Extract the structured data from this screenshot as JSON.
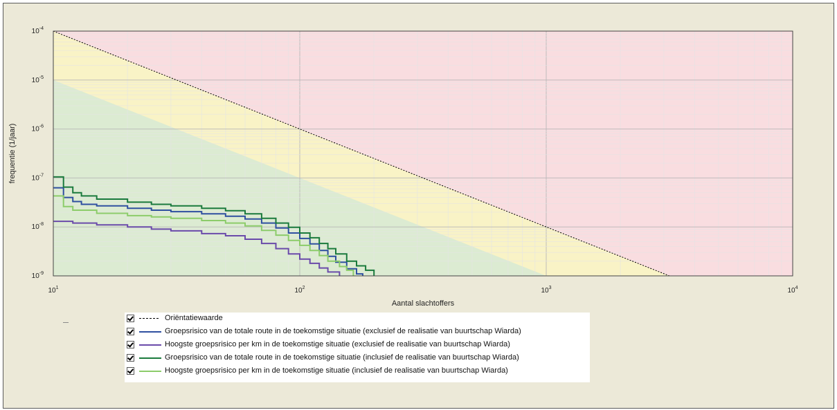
{
  "chart_data": {
    "type": "line",
    "xlabel": "Aantal slachtoffers",
    "ylabel": "frequentie (1/jaar)",
    "x_scale": "log",
    "y_scale": "log",
    "xlim": [
      10,
      10000
    ],
    "ylim": [
      1e-09,
      0.0001
    ],
    "x_ticks": [
      {
        "value": 10,
        "base": "10",
        "exp": "1"
      },
      {
        "value": 100,
        "base": "10",
        "exp": "2"
      },
      {
        "value": 1000,
        "base": "10",
        "exp": "3"
      },
      {
        "value": 10000,
        "base": "10",
        "exp": "4"
      }
    ],
    "y_ticks": [
      {
        "value": 0.0001,
        "base": "10",
        "exp": "-4"
      },
      {
        "value": 1e-05,
        "base": "10",
        "exp": "-5"
      },
      {
        "value": 1e-06,
        "base": "10",
        "exp": "-6"
      },
      {
        "value": 1e-07,
        "base": "10",
        "exp": "-7"
      },
      {
        "value": 1e-08,
        "base": "10",
        "exp": "-8"
      },
      {
        "value": 1e-09,
        "base": "10",
        "exp": "-9"
      }
    ],
    "grid": true,
    "regions": [
      {
        "zone": "above-orientation-value",
        "color": "#f9dde0"
      },
      {
        "zone": "between",
        "color": "#f9f3c6"
      },
      {
        "zone": "below-0.1x-orientation-value",
        "color": "#dcebd2"
      }
    ],
    "orientation_line": {
      "points": [
        [
          10,
          0.0001
        ],
        [
          3162,
          1e-09
        ]
      ],
      "color": "#000000",
      "style": "dashed"
    },
    "series": [
      {
        "name": "Groepsrisico van de totale route in de toekomstige situatie (exclusief de realisatie van buurtschap Wiarda)",
        "color": "#2e4fa0",
        "points": [
          [
            10,
            6.3e-08
          ],
          [
            11,
            4e-08
          ],
          [
            12,
            3.3e-08
          ],
          [
            13,
            2.9e-08
          ],
          [
            15,
            2.7e-08
          ],
          [
            20,
            2.4e-08
          ],
          [
            25,
            2.2e-08
          ],
          [
            30,
            2.05e-08
          ],
          [
            40,
            1.85e-08
          ],
          [
            50,
            1.65e-08
          ],
          [
            60,
            1.45e-08
          ],
          [
            70,
            1.2e-08
          ],
          [
            80,
            9.5e-09
          ],
          [
            90,
            7.5e-09
          ],
          [
            100,
            5.8e-09
          ],
          [
            110,
            4.5e-09
          ],
          [
            120,
            3.3e-09
          ],
          [
            130,
            2.5e-09
          ],
          [
            140,
            1.9e-09
          ],
          [
            155,
            1.4e-09
          ],
          [
            170,
            1.1e-09
          ],
          [
            180,
            1e-09
          ]
        ]
      },
      {
        "name": "Hoogste groepsrisico per km in de toekomstige situatie (exclusief de realisatie van buurtschap Wiarda)",
        "color": "#6a4aaa",
        "points": [
          [
            10,
            1.3e-08
          ],
          [
            12,
            1.2e-08
          ],
          [
            15,
            1.1e-08
          ],
          [
            20,
            1e-08
          ],
          [
            25,
            9e-09
          ],
          [
            30,
            8.3e-09
          ],
          [
            40,
            7.3e-09
          ],
          [
            50,
            6.6e-09
          ],
          [
            60,
            5.6e-09
          ],
          [
            70,
            4.6e-09
          ],
          [
            80,
            3.6e-09
          ],
          [
            90,
            2.8e-09
          ],
          [
            100,
            2.2e-09
          ],
          [
            110,
            1.8e-09
          ],
          [
            120,
            1.45e-09
          ],
          [
            130,
            1.2e-09
          ],
          [
            145,
            1e-09
          ]
        ]
      },
      {
        "name": "Groepsrisico van de totale route in de toekomstige situatie (inclusief de realisatie van buurtschap Wiarda)",
        "color": "#1a7a3c",
        "points": [
          [
            10,
            1.05e-07
          ],
          [
            11,
            6.5e-08
          ],
          [
            12,
            5e-08
          ],
          [
            13,
            4.3e-08
          ],
          [
            15,
            3.7e-08
          ],
          [
            20,
            3.2e-08
          ],
          [
            25,
            2.9e-08
          ],
          [
            30,
            2.7e-08
          ],
          [
            40,
            2.4e-08
          ],
          [
            50,
            2.15e-08
          ],
          [
            60,
            1.85e-08
          ],
          [
            70,
            1.5e-08
          ],
          [
            80,
            1.2e-08
          ],
          [
            90,
            9.8e-09
          ],
          [
            100,
            7.5e-09
          ],
          [
            110,
            6e-09
          ],
          [
            120,
            4.6e-09
          ],
          [
            130,
            3.6e-09
          ],
          [
            140,
            2.8e-09
          ],
          [
            155,
            2e-09
          ],
          [
            170,
            1.6e-09
          ],
          [
            185,
            1.3e-09
          ],
          [
            200,
            1e-09
          ]
        ]
      },
      {
        "name": "Hoogste groepsrisico per km in de toekomstige situatie (inclusief de realisatie van buurtschap Wiarda)",
        "color": "#8ccc6a",
        "points": [
          [
            10,
            4.3e-08
          ],
          [
            11,
            2.6e-08
          ],
          [
            12,
            2.2e-08
          ],
          [
            15,
            1.9e-08
          ],
          [
            20,
            1.7e-08
          ],
          [
            25,
            1.6e-08
          ],
          [
            30,
            1.5e-08
          ],
          [
            40,
            1.35e-08
          ],
          [
            50,
            1.2e-08
          ],
          [
            60,
            1.05e-08
          ],
          [
            70,
            8.5e-09
          ],
          [
            80,
            6.8e-09
          ],
          [
            90,
            5.3e-09
          ],
          [
            100,
            4.2e-09
          ],
          [
            110,
            3.3e-09
          ],
          [
            120,
            2.6e-09
          ],
          [
            130,
            2e-09
          ],
          [
            145,
            1.55e-09
          ],
          [
            155,
            1.3e-09
          ],
          [
            165,
            1e-09
          ]
        ]
      }
    ]
  },
  "legend": {
    "items": [
      {
        "label": "Oriëntatiewaarde",
        "color": "#000000",
        "style": "dashed"
      },
      {
        "label": "Groepsrisico van de totale route in de toekomstige situatie (exclusief de realisatie van buurtschap Wiarda)",
        "color": "#2e4fa0",
        "style": "solid"
      },
      {
        "label": "Hoogste groepsrisico per km in de toekomstige situatie (exclusief de realisatie van buurtschap Wiarda)",
        "color": "#6a4aaa",
        "style": "solid"
      },
      {
        "label": "Groepsrisico van de totale route in de toekomstige situatie (inclusief de realisatie van buurtschap Wiarda)",
        "color": "#1a7a3c",
        "style": "solid"
      },
      {
        "label": "Hoogste groepsrisico per km in de toekomstige situatie (inclusief de realisatie van buurtschap Wiarda)",
        "color": "#8ccc6a",
        "style": "solid"
      }
    ]
  }
}
